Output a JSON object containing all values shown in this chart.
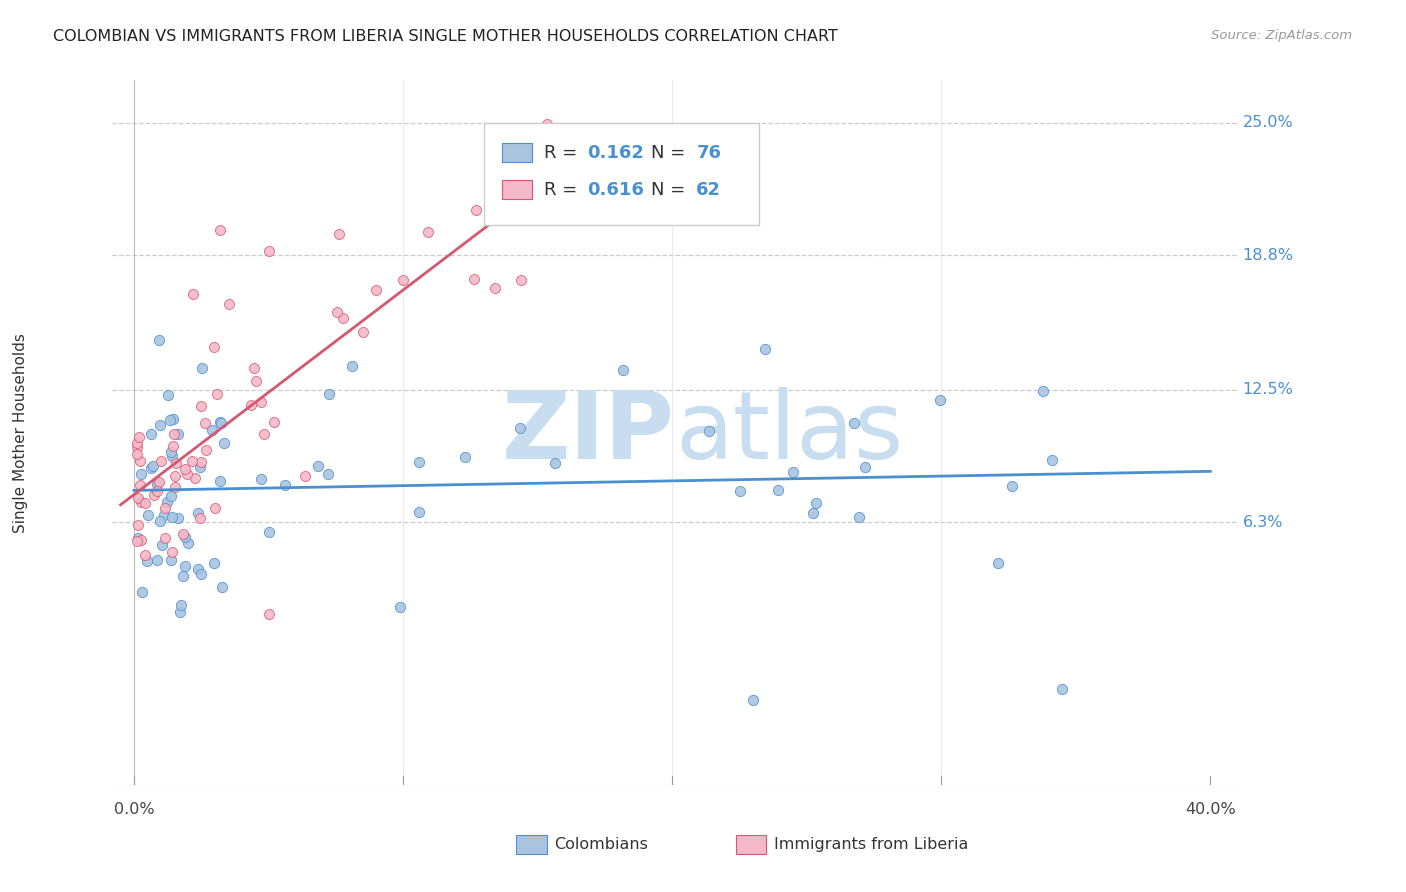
{
  "title": "COLOMBIAN VS IMMIGRANTS FROM LIBERIA SINGLE MOTHER HOUSEHOLDS CORRELATION CHART",
  "source": "Source: ZipAtlas.com",
  "ylabel": "Single Mother Households",
  "ytick_labels": [
    "6.3%",
    "12.5%",
    "18.8%",
    "25.0%"
  ],
  "ytick_values": [
    0.063,
    0.125,
    0.188,
    0.25
  ],
  "xlim": [
    0.0,
    0.4
  ],
  "ylim": [
    -0.06,
    0.27
  ],
  "colombian_color": "#aac4e0",
  "liberia_color": "#f4b8c8",
  "line_colombian": "#4a90d0",
  "line_liberia": "#d45870",
  "colombian_R": 0.162,
  "colombian_N": 76,
  "liberia_R": 0.616,
  "liberia_N": 62,
  "watermark_zip_color": "#c8ddef",
  "watermark_atlas_color": "#c8ddef",
  "grid_color": "#cccccc",
  "background_color": "#ffffff",
  "title_color": "#222222",
  "source_color": "#999999",
  "tick_label_color": "#4a90d0",
  "axis_label_color": "#333333"
}
